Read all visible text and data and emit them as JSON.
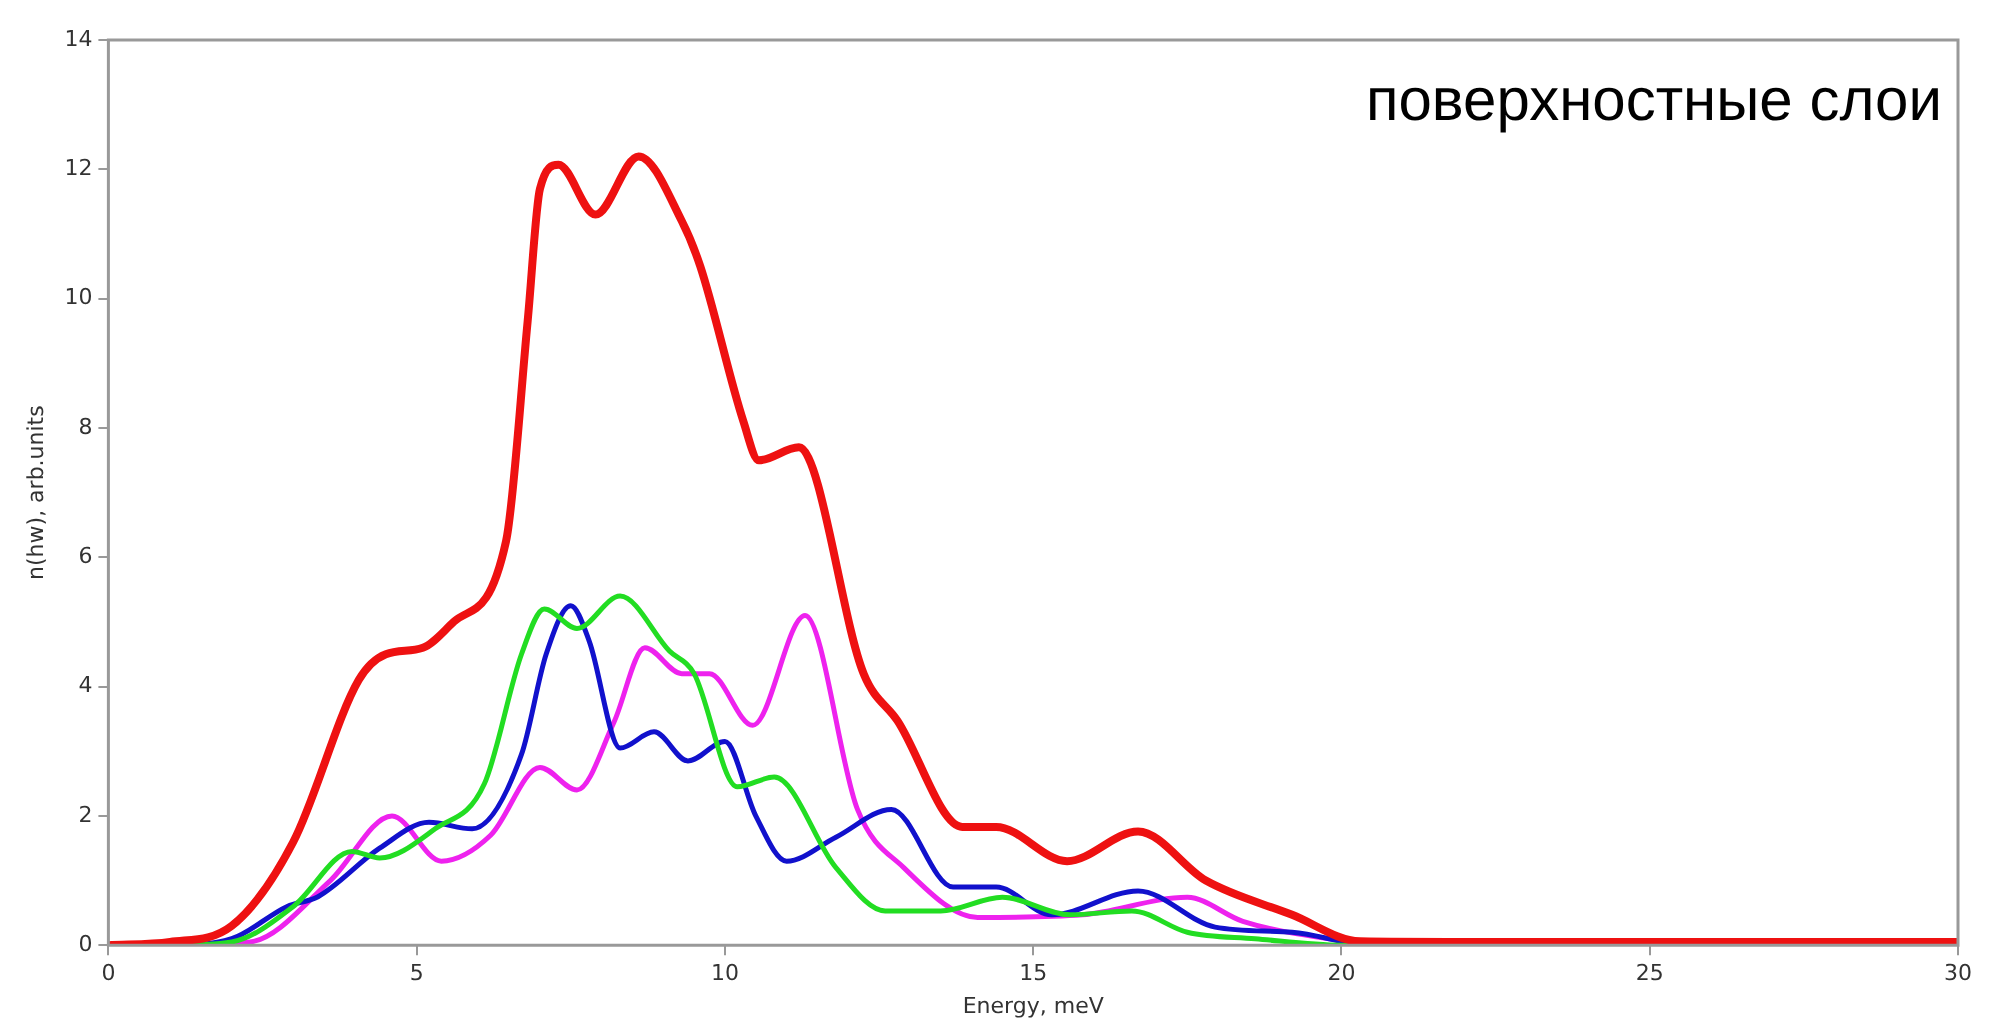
{
  "chart_data": {
    "type": "line",
    "title": "поверхностные слои",
    "xlabel": "Energy, meV",
    "ylabel": "n(hw), arb.units",
    "xlim": [
      0,
      30
    ],
    "xticks": [
      0,
      5,
      10,
      15,
      20,
      25,
      30
    ],
    "ylim": [
      0,
      14
    ],
    "yticks": [
      0,
      2,
      4,
      6,
      8,
      10,
      12,
      14
    ],
    "grid": false,
    "legend": false,
    "marker": "none",
    "line_style": "solid",
    "series": [
      {
        "color": "#ee1111",
        "x": [
          0,
          1,
          2,
          3,
          4.06,
          4.5,
          5.1,
          5.6,
          6.45,
          6.8,
          7.0,
          7.3,
          7.9,
          8.6,
          9.3,
          9.6,
          10.3,
          10.55,
          11.2,
          12.25,
          12.8,
          13.85,
          14.4,
          15.55,
          16.7,
          17.8,
          19.2,
          20.3,
          22,
          25,
          30
        ],
        "values": [
          0,
          0.05,
          0.3,
          1.6,
          4.1,
          4.5,
          4.6,
          5.0,
          6.25,
          9.65,
          11.7,
          12.07,
          11.3,
          12.2,
          11.2,
          10.5,
          8.1,
          7.5,
          7.7,
          4.2,
          3.47,
          1.83,
          1.83,
          1.3,
          1.76,
          1.0,
          0.47,
          0.06,
          0.05,
          0.05,
          0.05
        ]
      },
      {
        "color": "#22dd22",
        "x": [
          0,
          1,
          2,
          3,
          3.95,
          4.4,
          5.3,
          6.1,
          6.7,
          7.07,
          7.6,
          8.3,
          9.1,
          9.5,
          10.2,
          10.8,
          11.8,
          12.6,
          13.5,
          14.5,
          15.6,
          16.6,
          17.5,
          18.6,
          20,
          30
        ],
        "values": [
          0,
          0,
          0.05,
          0.6,
          1.45,
          1.35,
          1.8,
          2.5,
          4.5,
          5.2,
          4.9,
          5.4,
          4.55,
          4.2,
          2.45,
          2.6,
          1.2,
          0.53,
          0.53,
          0.74,
          0.47,
          0.53,
          0.2,
          0.1,
          0,
          0
        ]
      },
      {
        "color": "#1111cc",
        "x": [
          0,
          1,
          2,
          2.9,
          3.4,
          4.4,
          5.2,
          5.9,
          6.7,
          7.1,
          7.5,
          7.8,
          8.3,
          8.85,
          9.4,
          10.0,
          10.5,
          11.0,
          11.8,
          12.7,
          13.7,
          14.4,
          15.3,
          16.7,
          17.95,
          19.2,
          20.5,
          30
        ],
        "values": [
          0,
          0,
          0.1,
          0.6,
          0.75,
          1.5,
          1.9,
          1.8,
          2.95,
          4.5,
          5.25,
          4.7,
          3.05,
          3.3,
          2.85,
          3.15,
          2.0,
          1.3,
          1.67,
          2.1,
          0.9,
          0.9,
          0.47,
          0.84,
          0.28,
          0.2,
          0,
          0
        ]
      },
      {
        "color": "#ee22ee",
        "x": [
          0,
          1,
          2.3,
          3.6,
          4.6,
          5.4,
          6.2,
          7.0,
          7.6,
          8.2,
          8.7,
          9.3,
          9.75,
          10.45,
          11.3,
          12.15,
          12.9,
          14.1,
          15.8,
          17.5,
          18.4,
          19.8,
          21,
          30
        ],
        "values": [
          0,
          0,
          0.05,
          1.0,
          2.0,
          1.3,
          1.7,
          2.75,
          2.4,
          3.45,
          4.6,
          4.2,
          4.2,
          3.4,
          5.1,
          2.1,
          1.2,
          0.43,
          0.47,
          0.74,
          0.37,
          0.1,
          0,
          0
        ]
      }
    ]
  }
}
